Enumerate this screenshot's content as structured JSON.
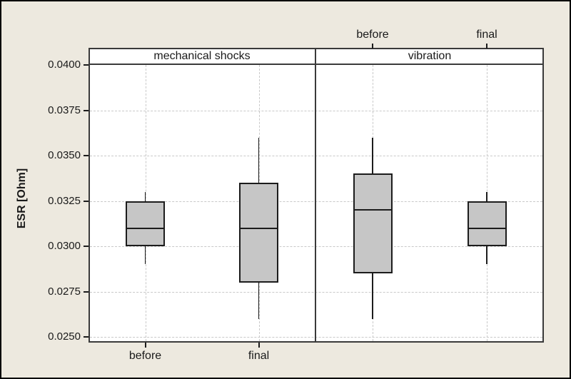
{
  "chart_data": {
    "type": "boxplot",
    "title": "",
    "ylabel": "ESR [Ohm]",
    "ylim": [
      0.025,
      0.04
    ],
    "yticks": [
      "0.0250",
      "0.0275",
      "0.0300",
      "0.0325",
      "0.0350",
      "0.0375",
      "0.0400"
    ],
    "grid": "dashed horizontal and vertical gridlines",
    "legend": "none",
    "panels": [
      {
        "label": "mechanical shocks",
        "category_labels_position": "bottom",
        "boxes": [
          {
            "category": "before",
            "whisker_low": 0.029,
            "q1": 0.03,
            "median": 0.031,
            "q3": 0.0325,
            "whisker_high": 0.033
          },
          {
            "category": "final",
            "whisker_low": 0.026,
            "q1": 0.028,
            "median": 0.031,
            "q3": 0.0335,
            "whisker_high": 0.036
          }
        ]
      },
      {
        "label": "vibration",
        "category_labels_position": "top",
        "boxes": [
          {
            "category": "before",
            "whisker_low": 0.026,
            "q1": 0.0285,
            "median": 0.032,
            "q3": 0.034,
            "whisker_high": 0.036
          },
          {
            "category": "final",
            "whisker_low": 0.029,
            "q1": 0.03,
            "median": 0.031,
            "q3": 0.0325,
            "whisker_high": 0.033
          }
        ]
      }
    ],
    "colors": {
      "background": "#EDE9DF",
      "plot_bg": "#FFFFFF",
      "box_fill": "#C6C6C6",
      "line": "#1C1C1C",
      "frame": "#3A3A3A",
      "gridline": "#C9C9C9",
      "text": "#1A1A1A"
    }
  }
}
